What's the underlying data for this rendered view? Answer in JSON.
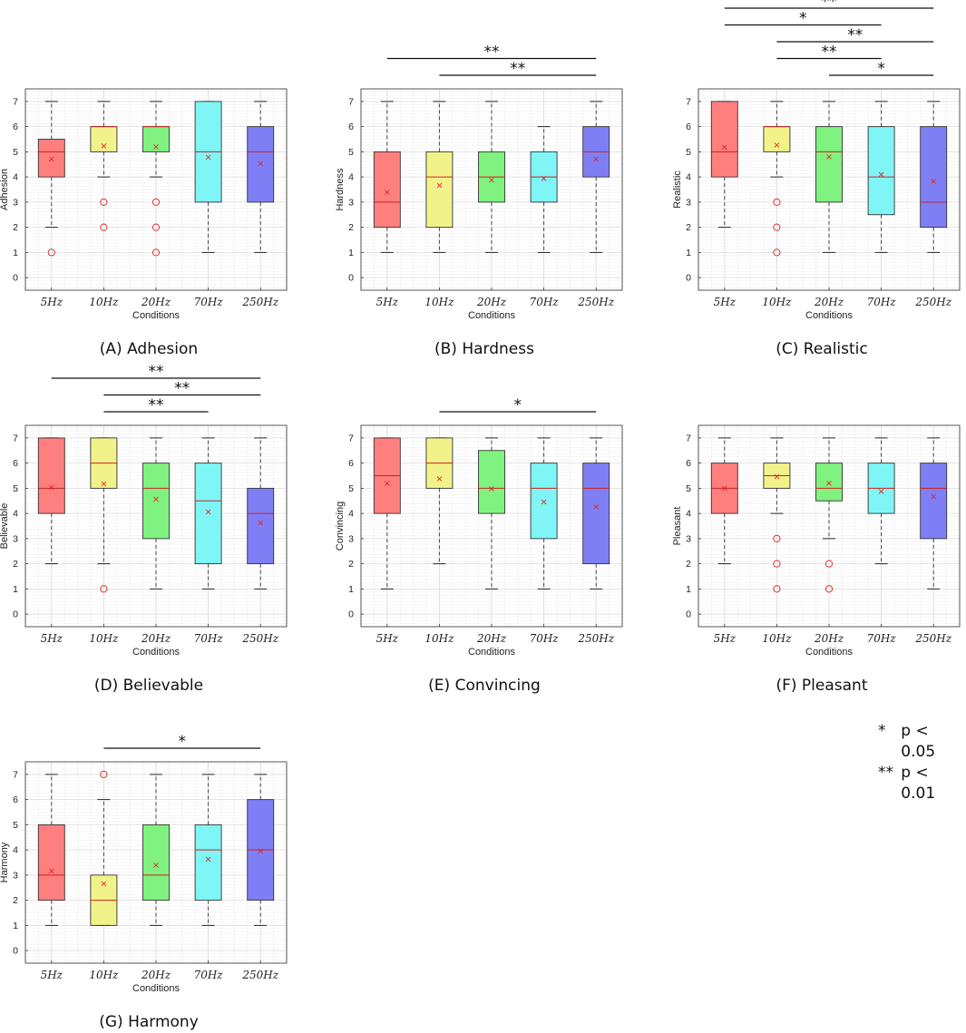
{
  "figure": {
    "legend": [
      {
        "symbol": "*",
        "text": "p < 0.05"
      },
      {
        "symbol": "**",
        "text": "p < 0.01"
      }
    ],
    "colors": {
      "5Hz": "#ff7f7f",
      "10Hz": "#f2f28a",
      "20Hz": "#7ff27f",
      "70Hz": "#7ff5f5",
      "250Hz": "#7f7ff5",
      "median_line": "#cc2020",
      "mean_marker": "#dd2222",
      "outlier": "#e03030"
    }
  },
  "chart_data": [
    {
      "type": "box",
      "title": "(A) Adhesion",
      "ylabel": "Adhesion",
      "xlabel": "Conditions",
      "categories": [
        "5Hz",
        "10Hz",
        "20Hz",
        "70Hz",
        "250Hz"
      ],
      "ylim": [
        -0.5,
        7.5
      ],
      "yticks": [
        0,
        1,
        2,
        3,
        4,
        5,
        6,
        7
      ],
      "boxes": [
        {
          "whisker_low": 2,
          "q1": 4,
          "median": 5,
          "q3": 5.5,
          "whisker_high": 7,
          "mean": 4.72,
          "outliers": [
            1
          ]
        },
        {
          "whisker_low": 4,
          "q1": 5,
          "median": 6,
          "q3": 6,
          "whisker_high": 7,
          "mean": 5.25,
          "outliers": [
            3,
            2
          ]
        },
        {
          "whisker_low": 4,
          "q1": 5,
          "median": 6,
          "q3": 6,
          "whisker_high": 7,
          "mean": 5.22,
          "outliers": [
            3,
            2,
            1
          ]
        },
        {
          "whisker_low": 1,
          "q1": 3,
          "median": 5,
          "q3": 7,
          "whisker_high": 7,
          "mean": 4.8,
          "outliers": []
        },
        {
          "whisker_low": 1,
          "q1": 3,
          "median": 5,
          "q3": 6,
          "whisker_high": 7,
          "mean": 4.55,
          "outliers": []
        }
      ],
      "significance": []
    },
    {
      "type": "box",
      "title": "(B) Hardness",
      "ylabel": "Hardness",
      "xlabel": "Conditions",
      "categories": [
        "5Hz",
        "10Hz",
        "20Hz",
        "70Hz",
        "250Hz"
      ],
      "ylim": [
        -0.5,
        7.5
      ],
      "yticks": [
        0,
        1,
        2,
        3,
        4,
        5,
        6,
        7
      ],
      "boxes": [
        {
          "whisker_low": 1,
          "q1": 2,
          "median": 3,
          "q3": 5,
          "whisker_high": 7,
          "mean": 3.42,
          "outliers": []
        },
        {
          "whisker_low": 1,
          "q1": 2,
          "median": 4,
          "q3": 5,
          "whisker_high": 7,
          "mean": 3.68,
          "outliers": []
        },
        {
          "whisker_low": 1,
          "q1": 3,
          "median": 4,
          "q3": 5,
          "whisker_high": 7,
          "mean": 3.9,
          "outliers": []
        },
        {
          "whisker_low": 1,
          "q1": 3,
          "median": 4,
          "q3": 5,
          "whisker_high": 6,
          "mean": 3.95,
          "outliers": []
        },
        {
          "whisker_low": 1,
          "q1": 4,
          "median": 5,
          "q3": 6,
          "whisker_high": 7,
          "mean": 4.72,
          "outliers": []
        }
      ],
      "significance": [
        {
          "from": 0,
          "to": 4,
          "label": "**"
        },
        {
          "from": 1,
          "to": 4,
          "label": "**"
        }
      ]
    },
    {
      "type": "box",
      "title": "(C) Realistic",
      "ylabel": "Realistic",
      "xlabel": "Conditions",
      "categories": [
        "5Hz",
        "10Hz",
        "20Hz",
        "70Hz",
        "250Hz"
      ],
      "ylim": [
        -0.5,
        7.5
      ],
      "yticks": [
        0,
        1,
        2,
        3,
        4,
        5,
        6,
        7
      ],
      "boxes": [
        {
          "whisker_low": 2,
          "q1": 4,
          "median": 5,
          "q3": 7,
          "whisker_high": 7,
          "mean": 5.2,
          "outliers": []
        },
        {
          "whisker_low": 4,
          "q1": 5,
          "median": 6,
          "q3": 6,
          "whisker_high": 7,
          "mean": 5.28,
          "outliers": [
            3,
            2,
            1
          ]
        },
        {
          "whisker_low": 1,
          "q1": 3,
          "median": 5,
          "q3": 6,
          "whisker_high": 7,
          "mean": 4.82,
          "outliers": []
        },
        {
          "whisker_low": 1,
          "q1": 2.5,
          "median": 4,
          "q3": 6,
          "whisker_high": 7,
          "mean": 4.12,
          "outliers": []
        },
        {
          "whisker_low": 1,
          "q1": 2,
          "median": 3,
          "q3": 6,
          "whisker_high": 7,
          "mean": 3.85,
          "outliers": []
        }
      ],
      "significance": [
        {
          "from": 0,
          "to": 4,
          "label": "**"
        },
        {
          "from": 0,
          "to": 3,
          "label": "*"
        },
        {
          "from": 1,
          "to": 4,
          "label": "**"
        },
        {
          "from": 1,
          "to": 3,
          "label": "**"
        },
        {
          "from": 2,
          "to": 4,
          "label": "*"
        }
      ]
    },
    {
      "type": "box",
      "title": "(D) Believable",
      "ylabel": "Believable",
      "xlabel": "Conditions",
      "categories": [
        "5Hz",
        "10Hz",
        "20Hz",
        "70Hz",
        "250Hz"
      ],
      "ylim": [
        -0.5,
        7.5
      ],
      "yticks": [
        0,
        1,
        2,
        3,
        4,
        5,
        6,
        7
      ],
      "boxes": [
        {
          "whisker_low": 2,
          "q1": 4,
          "median": 5,
          "q3": 7,
          "whisker_high": 7,
          "mean": 5.05,
          "outliers": []
        },
        {
          "whisker_low": 2,
          "q1": 5,
          "median": 6,
          "q3": 7,
          "whisker_high": 7,
          "mean": 5.2,
          "outliers": [
            1
          ]
        },
        {
          "whisker_low": 1,
          "q1": 3,
          "median": 5,
          "q3": 6,
          "whisker_high": 7,
          "mean": 4.58,
          "outliers": []
        },
        {
          "whisker_low": 1,
          "q1": 2,
          "median": 4.5,
          "q3": 6,
          "whisker_high": 7,
          "mean": 4.08,
          "outliers": []
        },
        {
          "whisker_low": 1,
          "q1": 2,
          "median": 4,
          "q3": 5,
          "whisker_high": 7,
          "mean": 3.65,
          "outliers": []
        }
      ],
      "significance": [
        {
          "from": 0,
          "to": 4,
          "label": "**"
        },
        {
          "from": 1,
          "to": 4,
          "label": "**"
        },
        {
          "from": 1,
          "to": 3,
          "label": "**"
        }
      ]
    },
    {
      "type": "box",
      "title": "(E) Convincing",
      "ylabel": "Convincing",
      "xlabel": "Conditions",
      "categories": [
        "5Hz",
        "10Hz",
        "20Hz",
        "70Hz",
        "250Hz"
      ],
      "ylim": [
        -0.5,
        7.5
      ],
      "yticks": [
        0,
        1,
        2,
        3,
        4,
        5,
        6,
        7
      ],
      "boxes": [
        {
          "whisker_low": 1,
          "q1": 4,
          "median": 5.5,
          "q3": 7,
          "whisker_high": 7,
          "mean": 5.22,
          "outliers": []
        },
        {
          "whisker_low": 2,
          "q1": 5,
          "median": 6,
          "q3": 7,
          "whisker_high": 7,
          "mean": 5.4,
          "outliers": []
        },
        {
          "whisker_low": 1,
          "q1": 4,
          "median": 5,
          "q3": 6.5,
          "whisker_high": 7,
          "mean": 5.0,
          "outliers": []
        },
        {
          "whisker_low": 1,
          "q1": 3,
          "median": 5,
          "q3": 6,
          "whisker_high": 7,
          "mean": 4.47,
          "outliers": []
        },
        {
          "whisker_low": 1,
          "q1": 2,
          "median": 5,
          "q3": 6,
          "whisker_high": 7,
          "mean": 4.27,
          "outliers": []
        }
      ],
      "significance": [
        {
          "from": 1,
          "to": 4,
          "label": "*"
        }
      ]
    },
    {
      "type": "box",
      "title": "(F) Pleasant",
      "ylabel": "Pleasant",
      "xlabel": "Conditions",
      "categories": [
        "5Hz",
        "10Hz",
        "20Hz",
        "70Hz",
        "250Hz"
      ],
      "ylim": [
        -0.5,
        7.5
      ],
      "yticks": [
        0,
        1,
        2,
        3,
        4,
        5,
        6,
        7
      ],
      "boxes": [
        {
          "whisker_low": 2,
          "q1": 4,
          "median": 5,
          "q3": 6,
          "whisker_high": 7,
          "mean": 5.02,
          "outliers": []
        },
        {
          "whisker_low": 4,
          "q1": 5,
          "median": 5.5,
          "q3": 6,
          "whisker_high": 7,
          "mean": 5.48,
          "outliers": [
            3,
            2,
            1
          ]
        },
        {
          "whisker_low": 3,
          "q1": 4.5,
          "median": 5,
          "q3": 6,
          "whisker_high": 7,
          "mean": 5.22,
          "outliers": [
            2,
            1
          ]
        },
        {
          "whisker_low": 2,
          "q1": 4,
          "median": 5,
          "q3": 6,
          "whisker_high": 7,
          "mean": 4.9,
          "outliers": []
        },
        {
          "whisker_low": 1,
          "q1": 3,
          "median": 5,
          "q3": 6,
          "whisker_high": 7,
          "mean": 4.7,
          "outliers": []
        }
      ],
      "significance": []
    },
    {
      "type": "box",
      "title": "(G) Harmony",
      "ylabel": "Harmony",
      "xlabel": "Conditions",
      "categories": [
        "5Hz",
        "10Hz",
        "20Hz",
        "70Hz",
        "250Hz"
      ],
      "ylim": [
        -0.5,
        7.5
      ],
      "yticks": [
        0,
        1,
        2,
        3,
        4,
        5,
        6,
        7
      ],
      "boxes": [
        {
          "whisker_low": 1,
          "q1": 2,
          "median": 3,
          "q3": 5,
          "whisker_high": 7,
          "mean": 3.18,
          "outliers": []
        },
        {
          "whisker_low": 1,
          "q1": 1,
          "median": 2,
          "q3": 3,
          "whisker_high": 6,
          "mean": 2.68,
          "outliers": [
            7
          ]
        },
        {
          "whisker_low": 1,
          "q1": 2,
          "median": 3,
          "q3": 5,
          "whisker_high": 7,
          "mean": 3.42,
          "outliers": []
        },
        {
          "whisker_low": 1,
          "q1": 2,
          "median": 4,
          "q3": 5,
          "whisker_high": 7,
          "mean": 3.65,
          "outliers": []
        },
        {
          "whisker_low": 1,
          "q1": 2,
          "median": 4,
          "q3": 6,
          "whisker_high": 7,
          "mean": 3.98,
          "outliers": []
        }
      ],
      "significance": [
        {
          "from": 1,
          "to": 4,
          "label": "*"
        }
      ]
    }
  ]
}
